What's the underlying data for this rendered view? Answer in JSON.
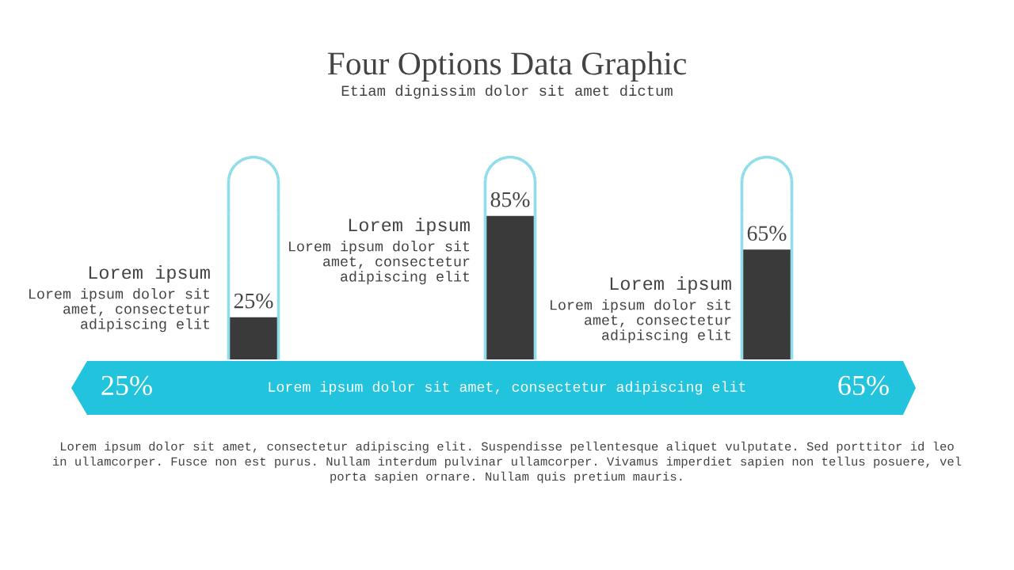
{
  "chart_data": {
    "type": "bar",
    "title": "Four Options Data Graphic",
    "subtitle": "Etiam dignissim dolor sit amet dictum",
    "categories": [
      null,
      null,
      null
    ],
    "values": [
      25,
      85,
      65
    ],
    "value_labels": [
      "25%",
      "85%",
      "65%"
    ],
    "color": "#3a3a3a",
    "annotations": [
      "Lorem ipsum",
      "Lorem ipsum dolor sit\namet, consectetur\nadipiscing elit",
      "Lorem ipsum",
      "Lorem ipsum dolor sit\namet, consectetur\nadipiscing elit",
      "Lorem ipsum",
      "Lorem ipsum dolor sit\namet, consectetur\nadipiscing elit",
      "25%",
      "Lorem ipsum dolor sit amet, consectetur adipiscing elit",
      "65%",
      "Lorem ipsum dolor sit amet, consectetur adipiscing elit. Suspendisse pellentesque aliquet vulputate. Sed porttitor id leo\nin ullamcorper. Fusce non est purus. Nullam interdum pulvinar ullamcorper. Vivamus imperdiet sapien non tellus posuere, vel\nporta sapien ornare. Nullam quis pretium mauris."
    ]
  }
}
